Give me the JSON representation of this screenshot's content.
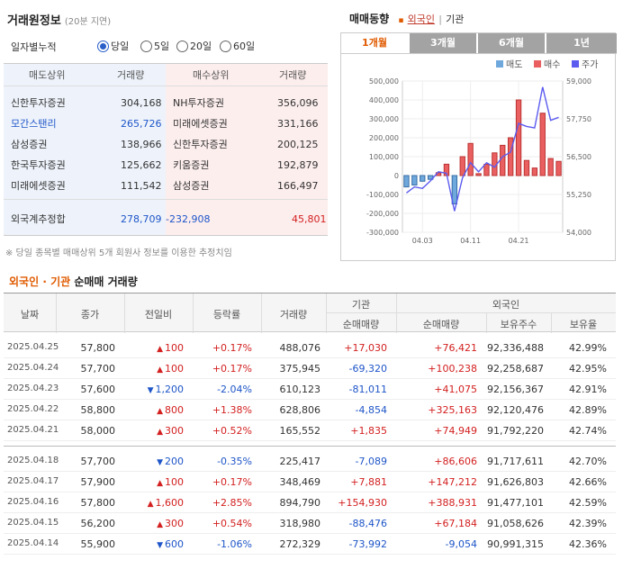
{
  "left_panel": {
    "title": "거래원정보",
    "subtitle": "(20분 지연)",
    "period_label": "일자별누적",
    "radios": [
      {
        "label": "당일",
        "selected": true
      },
      {
        "label": "5일",
        "selected": false
      },
      {
        "label": "20일",
        "selected": false
      },
      {
        "label": "60일",
        "selected": false
      }
    ],
    "headers": {
      "sell_broker": "매도상위",
      "sell_volume": "거래량",
      "buy_broker": "매수상위",
      "buy_volume": "거래량"
    },
    "sell_rows": [
      {
        "name": "신한투자증권",
        "volume": "304,168"
      },
      {
        "name": "모간스탠리",
        "volume": "265,726",
        "highlight": true
      },
      {
        "name": "삼성증권",
        "volume": "138,966"
      },
      {
        "name": "한국투자증권",
        "volume": "125,662"
      },
      {
        "name": "미래에셋증권",
        "volume": "111,542"
      }
    ],
    "buy_rows": [
      {
        "name": "NH투자증권",
        "volume": "356,096"
      },
      {
        "name": "미래에셋증권",
        "volume": "331,166"
      },
      {
        "name": "신한투자증권",
        "volume": "200,125"
      },
      {
        "name": "키움증권",
        "volume": "192,879"
      },
      {
        "name": "삼성증권",
        "volume": "166,497"
      }
    ],
    "foreign_label": "외국계추정합",
    "foreign_sell": "278,709",
    "foreign_net": "-232,908",
    "foreign_buy": "45,801",
    "note": "※ 당일 종목별 매매상위 5개 회원사 정보를 이용한 추정치임"
  },
  "chart_panel": {
    "title": "매매동향",
    "sep": "|",
    "opt_foreign": "외국인",
    "opt_inst": "기관",
    "tabs": [
      "1개월",
      "3개월",
      "6개월",
      "1년"
    ],
    "active_tab": 0,
    "legend": [
      {
        "label": "매도",
        "color": "#6fa8dc"
      },
      {
        "label": "매수",
        "color": "#ea6060"
      },
      {
        "label": "주가",
        "color": "#5b5bf0"
      }
    ]
  },
  "chart_data": {
    "type": "bar",
    "title": "",
    "left_axis_ticks": [
      "500,000",
      "400,000",
      "300,000",
      "200,000",
      "100,000",
      "0",
      "-100,000",
      "-200,000",
      "-300,000"
    ],
    "right_axis_ticks": [
      "59,000",
      "57,750",
      "56,500",
      "55,250",
      "54,000"
    ],
    "x_ticks": [
      "04.03",
      "04.11",
      "04.21"
    ],
    "ylim": [
      -300000,
      500000
    ],
    "price_lim": [
      54000,
      59000
    ],
    "series": [
      {
        "name": "매도",
        "values": [
          -60000,
          -50000,
          -30000,
          -20000,
          0,
          0,
          -150000,
          0,
          0,
          0,
          0,
          0,
          0,
          0,
          0,
          0,
          0,
          0,
          0,
          0
        ]
      },
      {
        "name": "매수",
        "values": [
          0,
          0,
          0,
          0,
          15000,
          60000,
          0,
          100000,
          170000,
          10000,
          60000,
          120000,
          160000,
          200000,
          400000,
          80000,
          40000,
          330000,
          90000,
          75000
        ]
      },
      {
        "name": "주가",
        "values": [
          55300,
          55500,
          55450,
          55700,
          56000,
          55950,
          54700,
          55800,
          56300,
          56000,
          56300,
          56150,
          56500,
          56650,
          57600,
          57500,
          57450,
          58800,
          57700,
          57800
        ]
      }
    ]
  },
  "bottom_table": {
    "title_foreign": "외국인",
    "title_dot": "·",
    "title_inst": "기관",
    "title_rest": "순매매 거래량",
    "headers": {
      "date": "날짜",
      "close": "종가",
      "change": "전일비",
      "rate": "등락률",
      "volume": "거래량",
      "inst": "기관",
      "inst_net": "순매매량",
      "foreign": "외국인",
      "foreign_net": "순매매량",
      "holdings": "보유주수",
      "ratio": "보유율"
    },
    "rows": [
      {
        "date": "2025.04.25",
        "close": "57,800",
        "dir": "up",
        "change": "100",
        "rate": "+0.17%",
        "volume": "488,076",
        "inst": "+17,030",
        "foreign": "+76,421",
        "holdings": "92,336,488",
        "ratio": "42.99%"
      },
      {
        "date": "2025.04.24",
        "close": "57,700",
        "dir": "up",
        "change": "100",
        "rate": "+0.17%",
        "volume": "375,945",
        "inst": "-69,320",
        "foreign": "+100,238",
        "holdings": "92,258,687",
        "ratio": "42.95%"
      },
      {
        "date": "2025.04.23",
        "close": "57,600",
        "dir": "down",
        "change": "1,200",
        "rate": "-2.04%",
        "volume": "610,123",
        "inst": "-81,011",
        "foreign": "+41,075",
        "holdings": "92,156,367",
        "ratio": "42.91%"
      },
      {
        "date": "2025.04.22",
        "close": "58,800",
        "dir": "up",
        "change": "800",
        "rate": "+1.38%",
        "volume": "628,806",
        "inst": "-4,854",
        "foreign": "+325,163",
        "holdings": "92,120,476",
        "ratio": "42.89%"
      },
      {
        "date": "2025.04.21",
        "close": "58,000",
        "dir": "up",
        "change": "300",
        "rate": "+0.52%",
        "volume": "165,552",
        "inst": "+1,835",
        "foreign": "+74,949",
        "holdings": "91,792,220",
        "ratio": "42.74%"
      },
      {
        "date": "2025.04.18",
        "close": "57,700",
        "dir": "down",
        "change": "200",
        "rate": "-0.35%",
        "volume": "225,417",
        "inst": "-7,089",
        "foreign": "+86,606",
        "holdings": "91,717,611",
        "ratio": "42.70%"
      },
      {
        "date": "2025.04.17",
        "close": "57,900",
        "dir": "up",
        "change": "100",
        "rate": "+0.17%",
        "volume": "348,469",
        "inst": "+7,881",
        "foreign": "+147,212",
        "holdings": "91,626,803",
        "ratio": "42.66%"
      },
      {
        "date": "2025.04.16",
        "close": "57,800",
        "dir": "up",
        "change": "1,600",
        "rate": "+2.85%",
        "volume": "894,790",
        "inst": "+154,930",
        "foreign": "+388,931",
        "holdings": "91,477,101",
        "ratio": "42.59%"
      },
      {
        "date": "2025.04.15",
        "close": "56,200",
        "dir": "up",
        "change": "300",
        "rate": "+0.54%",
        "volume": "318,980",
        "inst": "-88,476",
        "foreign": "+67,184",
        "holdings": "91,058,626",
        "ratio": "42.39%"
      },
      {
        "date": "2025.04.14",
        "close": "55,900",
        "dir": "down",
        "change": "600",
        "rate": "-1.06%",
        "volume": "272,329",
        "inst": "-73,992",
        "foreign": "-9,054",
        "holdings": "90,991,315",
        "ratio": "42.36%"
      }
    ]
  }
}
